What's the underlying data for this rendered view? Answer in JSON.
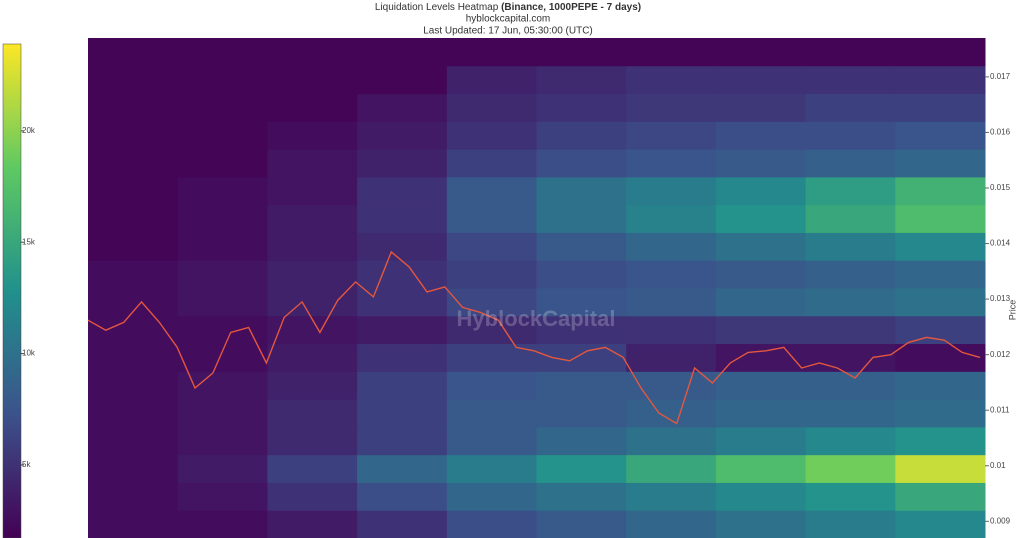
{
  "chart_data": {
    "type": "heatmap",
    "title": "Liquidation Levels Heatmap",
    "title_emphasis": "(Binance, 1000PEPE - 7 days)",
    "subtitle": "hyblockcapital.com",
    "updated": "Last Updated: 17 Jun, 05:30:00 (UTC)",
    "watermark": "HyblockCapital",
    "y_label": "Price",
    "ylim": [
      0.0087,
      0.0177
    ],
    "yticks": [
      0.009,
      0.01,
      0.011,
      0.012,
      0.013,
      0.014,
      0.015,
      0.016,
      0.017
    ],
    "ybins": [
      0.0087,
      0.0092,
      0.0097,
      0.0102,
      0.0107,
      0.0112,
      0.0117,
      0.0122,
      0.0127,
      0.0132,
      0.0137,
      0.0142,
      0.0147,
      0.0152,
      0.0157,
      0.0162,
      0.0167,
      0.0172,
      0.0177
    ],
    "colorscale": "viridis",
    "zlim": [
      1720,
      23900
    ],
    "zticks": [
      {
        "value": 5000,
        "label": "5k"
      },
      {
        "value": 10000,
        "label": "10k"
      },
      {
        "value": 15000,
        "label": "15k"
      },
      {
        "value": 20000,
        "label": "20k"
      }
    ],
    "z": [
      [
        2500,
        2500,
        3500,
        5000,
        7000,
        8000,
        9000,
        10000,
        11000,
        12000
      ],
      [
        2500,
        3000,
        5000,
        7000,
        9000,
        10000,
        11000,
        12000,
        13000,
        15000
      ],
      [
        2500,
        3500,
        6000,
        9000,
        11000,
        13000,
        15000,
        17000,
        19000,
        22000
      ],
      [
        2500,
        3000,
        4500,
        6000,
        8000,
        9000,
        10000,
        11000,
        12000,
        13000
      ],
      [
        2500,
        3000,
        4500,
        6000,
        8000,
        8000,
        8500,
        9000,
        9000,
        9500
      ],
      [
        2500,
        3000,
        4000,
        6000,
        7500,
        8000,
        8000,
        8500,
        8500,
        9000
      ],
      [
        2500,
        2500,
        3500,
        5000,
        6000,
        6000,
        4000,
        3000,
        3000,
        2500
      ],
      [
        2500,
        2500,
        3000,
        3500,
        4500,
        5000,
        5000,
        5500,
        5500,
        6000
      ],
      [
        2500,
        3000,
        4000,
        5000,
        6500,
        7500,
        8000,
        9000,
        9500,
        10000
      ],
      [
        2500,
        3000,
        4000,
        5000,
        6000,
        7000,
        7500,
        8000,
        8500,
        9000
      ],
      [
        2000,
        2500,
        3500,
        4500,
        6500,
        8000,
        9000,
        10000,
        11000,
        12000
      ],
      [
        2000,
        2500,
        3500,
        5000,
        8000,
        10000,
        11500,
        13000,
        15000,
        17000
      ],
      [
        2000,
        2500,
        3000,
        5000,
        8000,
        10000,
        11000,
        12000,
        14000,
        16000
      ],
      [
        2000,
        2000,
        3000,
        4000,
        6000,
        7000,
        7500,
        8000,
        8500,
        9000
      ],
      [
        2000,
        2000,
        2500,
        3500,
        5000,
        6000,
        6500,
        7000,
        7000,
        7500
      ],
      [
        2000,
        2000,
        2000,
        3000,
        4500,
        5000,
        5500,
        5500,
        6000,
        6000
      ],
      [
        2000,
        2000,
        2000,
        2000,
        4000,
        4500,
        5000,
        5000,
        5000,
        5000
      ],
      [
        2000,
        2000,
        2000,
        2000,
        2000,
        2000,
        2000,
        2000,
        2000,
        2000
      ]
    ],
    "price": {
      "color": "#e4573e",
      "values": [
        0.01262,
        0.01244,
        0.01258,
        0.01295,
        0.01258,
        0.01213,
        0.0114,
        0.01167,
        0.0124,
        0.01249,
        0.01185,
        0.01267,
        0.01295,
        0.0124,
        0.01298,
        0.01331,
        0.01304,
        0.01385,
        0.01358,
        0.01313,
        0.01322,
        0.01285,
        0.01276,
        0.01262,
        0.01213,
        0.01207,
        0.01195,
        0.01189,
        0.01207,
        0.01213,
        0.01195,
        0.0114,
        0.01095,
        0.01076,
        0.01176,
        0.01149,
        0.01185,
        0.01204,
        0.01207,
        0.01213,
        0.01176,
        0.01185,
        0.01176,
        0.01158,
        0.01195,
        0.012,
        0.01222,
        0.01231,
        0.01226,
        0.01204,
        0.01195
      ]
    }
  }
}
